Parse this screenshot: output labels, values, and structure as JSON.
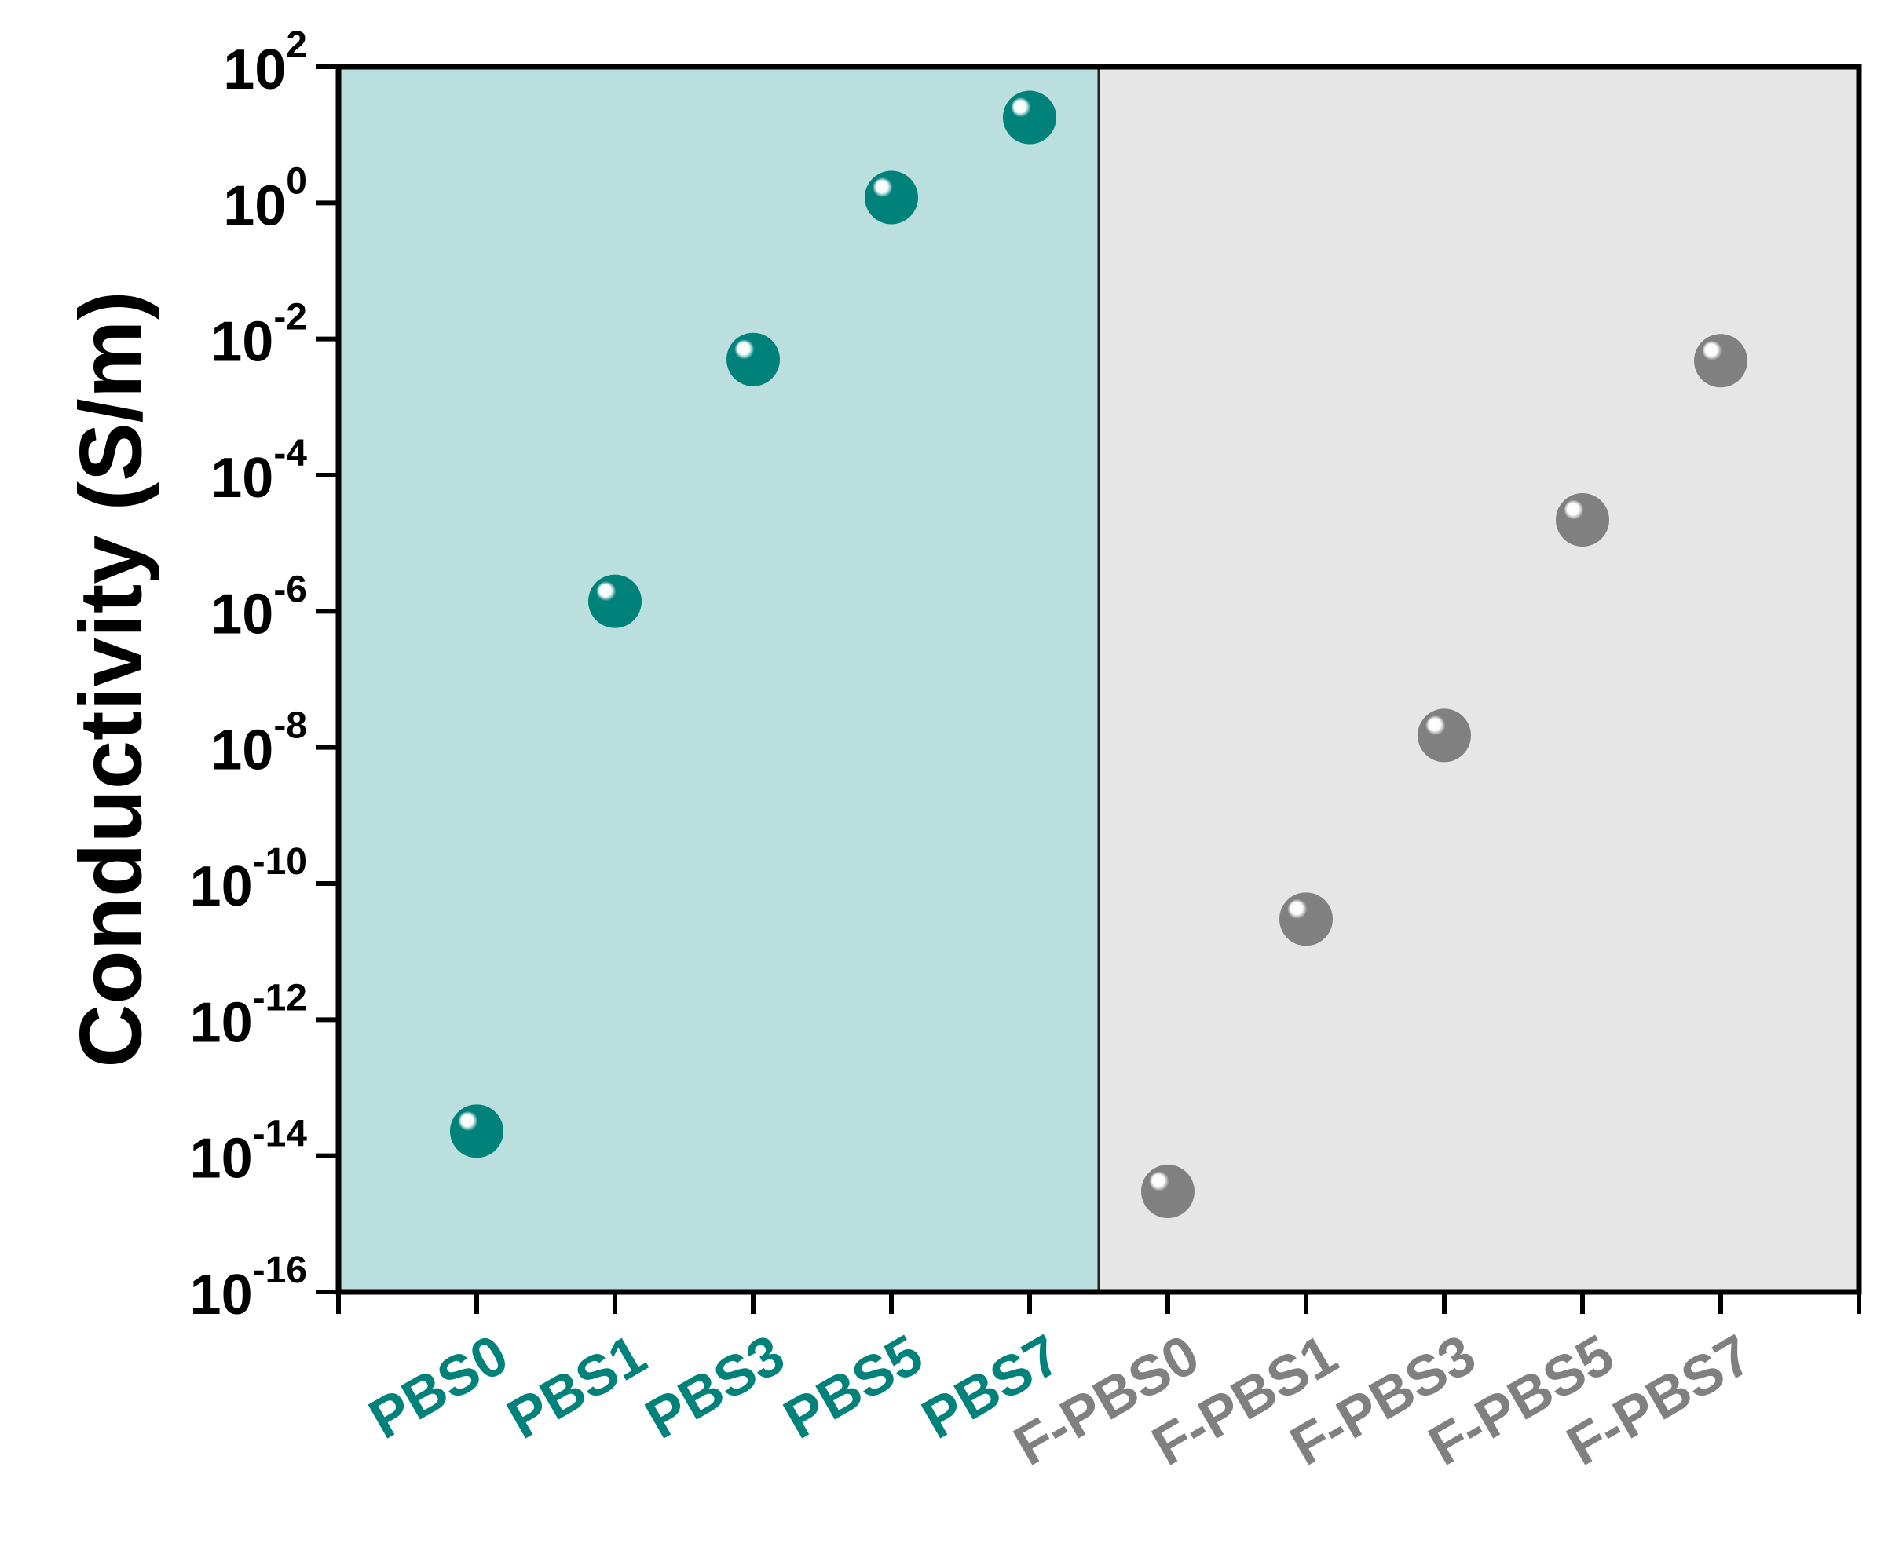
{
  "chart_data": {
    "type": "scatter",
    "y_label": "Conductivity (S/m)",
    "log_y": true,
    "categories": [
      "PBS0",
      "PBS1",
      "PBS3",
      "PBS5",
      "PBS7",
      "F-PBS0",
      "F-PBS1",
      "F-PBS3",
      "F-PBS5",
      "F-PBS7"
    ],
    "series": [
      {
        "color": "#00827a",
        "band_color": "#bbdede",
        "values": [
          2.3e-14,
          1.4e-06,
          0.005,
          1.2,
          18,
          null,
          null,
          null,
          null,
          null
        ]
      },
      {
        "color": "#808080",
        "band_color": "#e6e6e6",
        "values": [
          null,
          null,
          null,
          null,
          null,
          3e-15,
          3e-11,
          1.5e-08,
          2.2e-05,
          0.0048
        ]
      }
    ],
    "ylim": [
      1e-16,
      100
    ],
    "yticks": [
      {
        "value": 1e-16,
        "label": "10",
        "exponent": "-16"
      },
      {
        "value": 1e-14,
        "label": "10",
        "exponent": "-14"
      },
      {
        "value": 1e-12,
        "label": "10",
        "exponent": "-12"
      },
      {
        "value": 1e-10,
        "label": "10",
        "exponent": "-10"
      },
      {
        "value": 1e-08,
        "label": "10",
        "exponent": "-8"
      },
      {
        "value": 1e-06,
        "label": "10",
        "exponent": "-6"
      },
      {
        "value": 0.0001,
        "label": "10",
        "exponent": "-4"
      },
      {
        "value": 0.01,
        "label": "10",
        "exponent": "-2"
      },
      {
        "value": 1,
        "label": "10",
        "exponent": "0"
      },
      {
        "value": 100,
        "label": "10",
        "exponent": "2"
      }
    ]
  }
}
